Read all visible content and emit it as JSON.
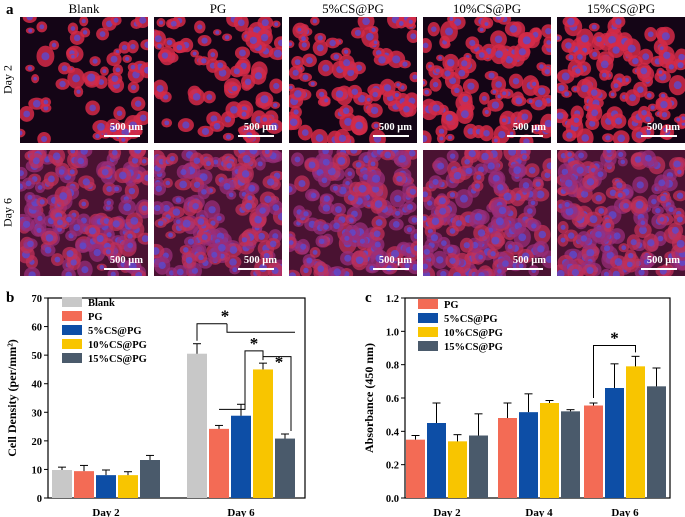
{
  "panel_a": {
    "letter": "a",
    "columns": [
      "Blank",
      "PG",
      "5%CS@PG",
      "10%CS@PG",
      "15%CS@PG"
    ],
    "rows": [
      "Day 2",
      "Day 6"
    ],
    "scale_bar": "500 μm"
  },
  "chart_data": [
    {
      "panel": "b",
      "type": "bar",
      "categories": [
        "Day 2",
        "Day 6"
      ],
      "ylabel": "Cell Density (per/mm²)",
      "ylim": [
        0,
        70
      ],
      "yticks": [
        0,
        10,
        20,
        30,
        40,
        50,
        60,
        70
      ],
      "legend_position": "top-left",
      "series": [
        {
          "name": "Blank",
          "color": "#c8c8c8",
          "values": [
            9.8,
            50.5
          ],
          "errors": [
            1.0,
            3.5
          ]
        },
        {
          "name": "PG",
          "color": "#f36b55",
          "values": [
            9.4,
            24.2
          ],
          "errors": [
            2.0,
            1.2
          ]
        },
        {
          "name": "5%CS@PG",
          "color": "#0d4ea6",
          "values": [
            8.0,
            28.8
          ],
          "errors": [
            1.8,
            4.0
          ]
        },
        {
          "name": "10%CS@PG",
          "color": "#f8c500",
          "values": [
            8.0,
            45.0
          ],
          "errors": [
            1.2,
            2.2
          ]
        },
        {
          "name": "15%CS@PG",
          "color": "#4a5a6b",
          "values": [
            13.3,
            20.8
          ],
          "errors": [
            1.6,
            1.6
          ]
        }
      ],
      "significance": [
        "*",
        "*",
        "*"
      ]
    },
    {
      "panel": "c",
      "type": "bar",
      "categories": [
        "Day 2",
        "Day 4",
        "Day 6"
      ],
      "ylabel": "Absorbance (450 nm)",
      "ylim": [
        0,
        1.2
      ],
      "yticks": [
        "0.0",
        "0.2",
        "0.4",
        "0.6",
        "0.8",
        "1.0",
        "1.2"
      ],
      "legend_position": "top-left",
      "series": [
        {
          "name": "PG",
          "color": "#f36b55",
          "values": [
            0.35,
            0.48,
            0.555
          ],
          "errors": [
            0.025,
            0.09,
            0.015
          ]
        },
        {
          "name": "5%CS@PG",
          "color": "#0d4ea6",
          "values": [
            0.45,
            0.515,
            0.66
          ],
          "errors": [
            0.12,
            0.11,
            0.145
          ]
        },
        {
          "name": "10%CS@PG",
          "color": "#f8c500",
          "values": [
            0.34,
            0.57,
            0.79
          ],
          "errors": [
            0.04,
            0.015,
            0.06
          ]
        },
        {
          "name": "15%CS@PG",
          "color": "#4a5a6b",
          "values": [
            0.375,
            0.52,
            0.67
          ],
          "errors": [
            0.13,
            0.01,
            0.11
          ]
        }
      ],
      "significance": [
        "*"
      ]
    }
  ]
}
